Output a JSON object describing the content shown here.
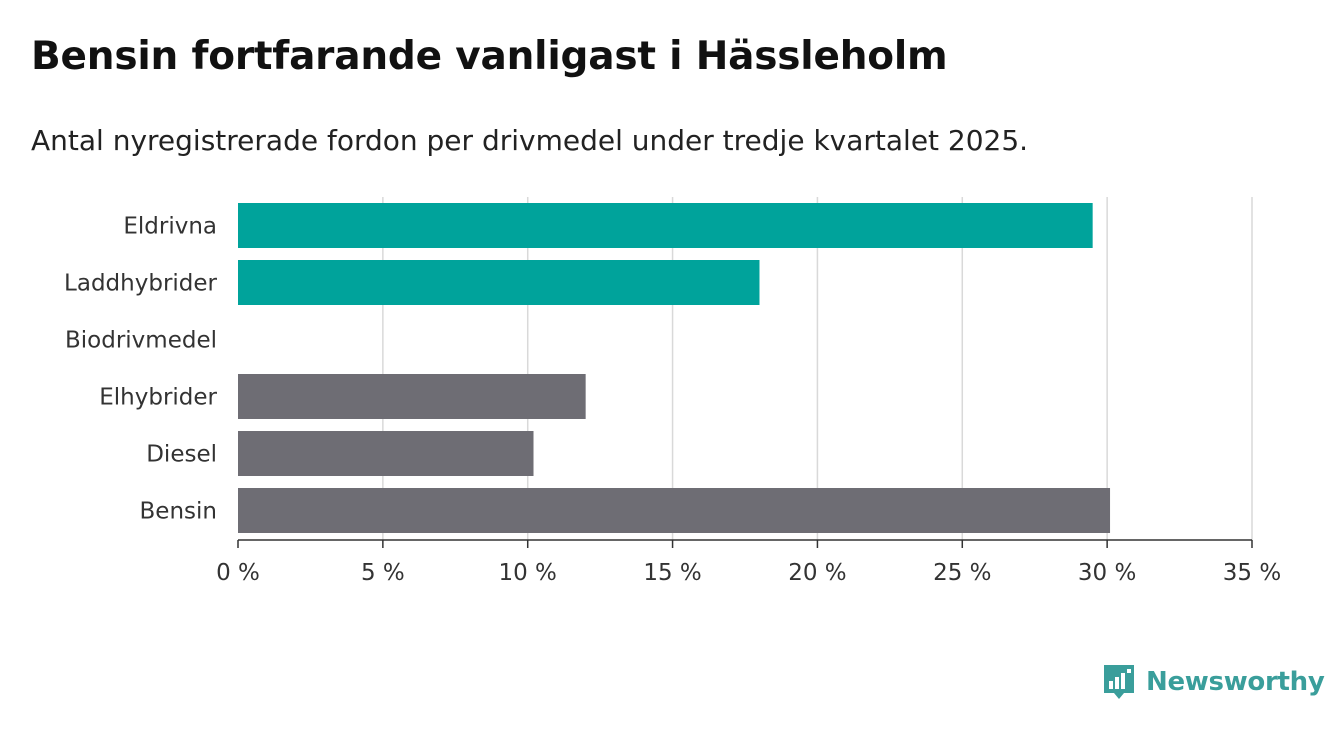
{
  "title": "Bensin fortfarande vanligast i Hässleholm",
  "subtitle": "Antal nyregistrerade fordon per drivmedel under tredje kvartalet 2025.",
  "brand": {
    "name": "Newsworthy",
    "icon": "newsworthy-chart-icon"
  },
  "colors": {
    "highlight": "#00a39b",
    "neutral": "#6e6d74",
    "grid": "#d9d9d9",
    "axis": "#333333",
    "brand": "#3a9e9b"
  },
  "chart_data": {
    "type": "bar",
    "orientation": "horizontal",
    "categories": [
      "Eldrivna",
      "Laddhybrider",
      "Biodrivmedel",
      "Elhybrider",
      "Diesel",
      "Bensin"
    ],
    "values": [
      29.5,
      18.0,
      0,
      12.0,
      10.2,
      30.1
    ],
    "highlight": [
      true,
      true,
      true,
      false,
      false,
      false
    ],
    "unit": "%",
    "xlim": [
      0,
      35
    ],
    "ticks": [
      0,
      5,
      10,
      15,
      20,
      25,
      30,
      35
    ],
    "tick_labels": [
      "0 %",
      "5 %",
      "10 %",
      "15 %",
      "20 %",
      "25 %",
      "30 %",
      "35 %"
    ],
    "grid": true,
    "xlabel": "",
    "ylabel": ""
  }
}
